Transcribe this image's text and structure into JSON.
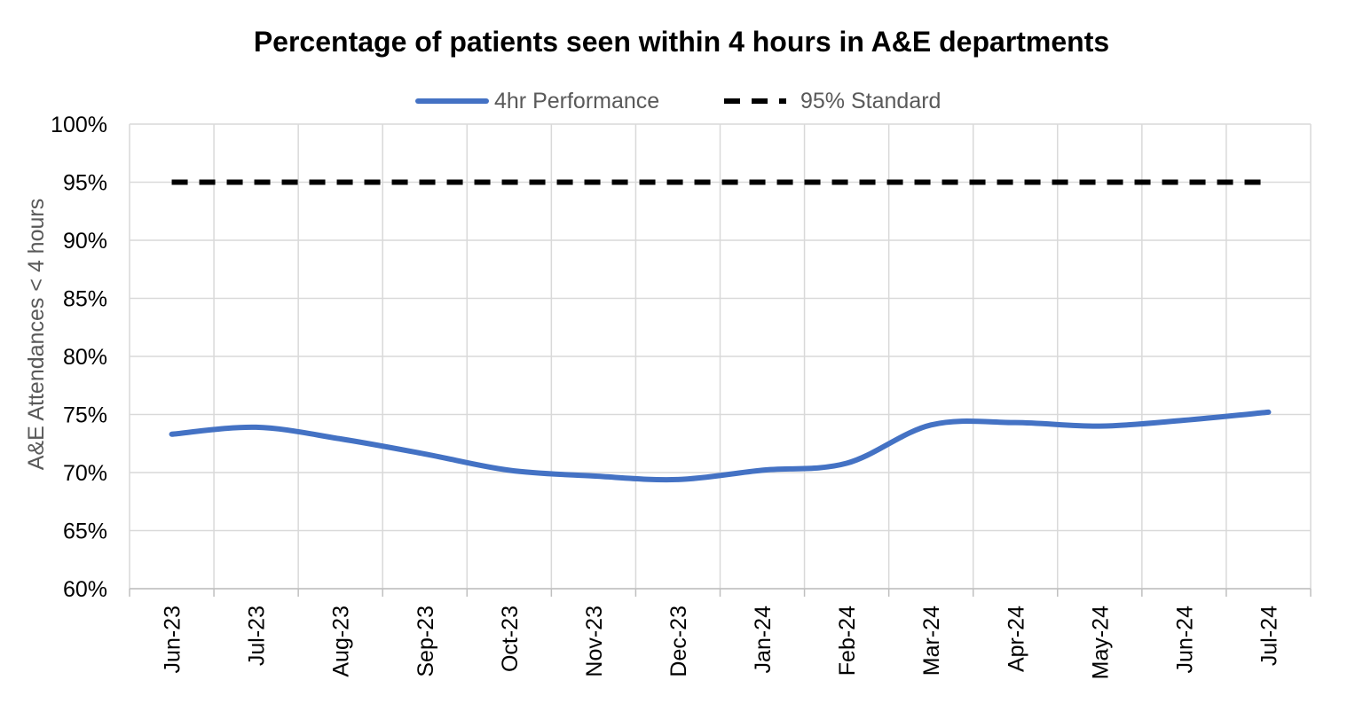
{
  "chart_data": {
    "type": "line",
    "title": "Percentage of patients seen within 4 hours in A&E departments",
    "xlabel": "",
    "ylabel": "A&E Attendances < 4 hours",
    "categories": [
      "Jun-23",
      "Jul-23",
      "Aug-23",
      "Sep-23",
      "Oct-23",
      "Nov-23",
      "Dec-23",
      "Jan-24",
      "Feb-24",
      "Mar-24",
      "Apr-24",
      "May-24",
      "Jun-24",
      "Jul-24"
    ],
    "ylim": [
      60,
      100
    ],
    "yticks": [
      "60%",
      "65%",
      "70%",
      "75%",
      "80%",
      "85%",
      "90%",
      "95%",
      "100%"
    ],
    "grid": true,
    "legend_position": "top",
    "series": [
      {
        "name": "4hr Performance",
        "color": "#4472C4",
        "style": "solid",
        "values": [
          73.3,
          73.9,
          72.9,
          71.6,
          70.2,
          69.7,
          69.4,
          70.2,
          70.8,
          74.1,
          74.3,
          74.0,
          74.5,
          75.2
        ]
      },
      {
        "name": "95% Standard",
        "color": "#000000",
        "style": "dashed",
        "values": [
          95,
          95,
          95,
          95,
          95,
          95,
          95,
          95,
          95,
          95,
          95,
          95,
          95,
          95
        ]
      }
    ]
  }
}
